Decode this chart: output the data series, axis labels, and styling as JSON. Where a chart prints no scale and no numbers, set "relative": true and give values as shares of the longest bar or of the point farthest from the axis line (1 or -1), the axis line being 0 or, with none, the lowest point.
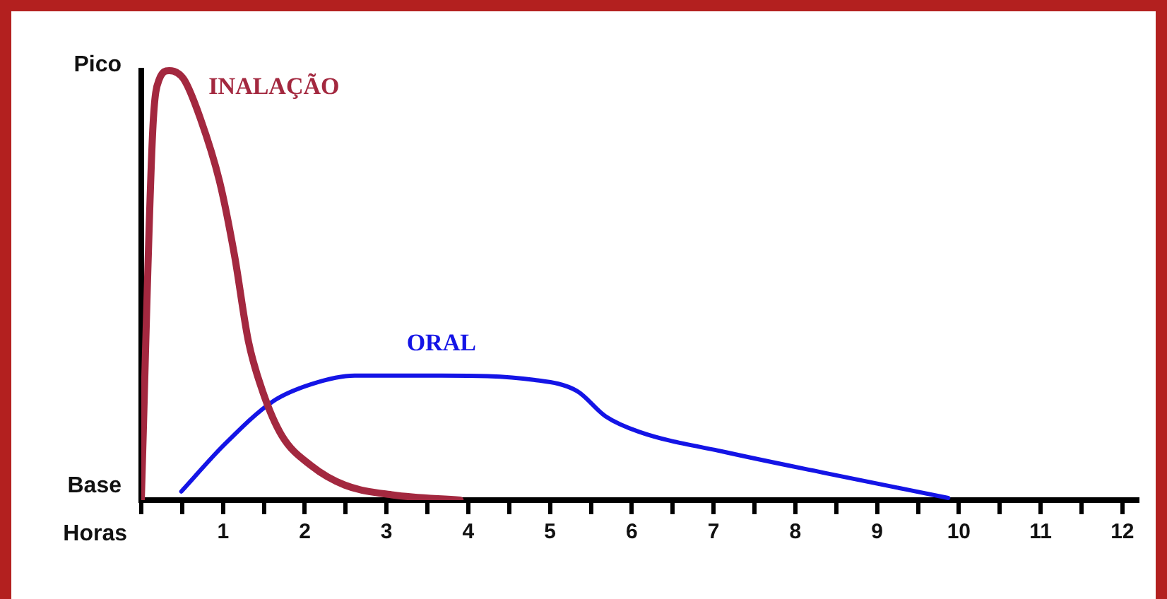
{
  "chart_data": {
    "type": "line",
    "xlabel": "Horas",
    "relative": true,
    "annotations": [
      "Pico",
      "Base"
    ],
    "series": [
      {
        "name": "INALAÇÃO",
        "color": "#a3283f",
        "x": [
          0,
          0.14,
          0.22,
          0.34,
          0.52,
          0.72,
          0.96,
          1.14,
          1.31,
          1.49,
          1.72,
          2.08,
          2.49,
          3.08,
          3.9
        ],
        "values": [
          0,
          0.86,
          0.98,
          1,
          0.98,
          0.89,
          0.74,
          0.57,
          0.37,
          0.25,
          0.15,
          0.08,
          0.035,
          0.012,
          0
        ]
      },
      {
        "name": "ORAL",
        "color": "#1414e6",
        "x": [
          0.49,
          1.02,
          1.61,
          2.08,
          2.61,
          3.67,
          4.8,
          5.33,
          5.68,
          6.09,
          7.16,
          8.34,
          9.87
        ],
        "values": [
          0.02,
          0.13,
          0.23,
          0.27,
          0.29,
          0.29,
          0.28,
          0.254,
          0.195,
          0.159,
          0.111,
          0.064,
          0.005
        ]
      }
    ],
    "xlim": [
      0,
      12.2
    ],
    "xticks": [
      {
        "value": 0,
        "label": null
      },
      {
        "value": 0.5,
        "label": null
      },
      1,
      {
        "value": 1.5,
        "label": null
      },
      2,
      {
        "value": 2.5,
        "label": null
      },
      3,
      {
        "value": 3.5,
        "label": null
      },
      4,
      {
        "value": 4.5,
        "label": null
      },
      5,
      {
        "value": 5.5,
        "label": null
      },
      6,
      {
        "value": 6.5,
        "label": null
      },
      7,
      {
        "value": 7.5,
        "label": null
      },
      8,
      {
        "value": 8.5,
        "label": null
      },
      9,
      {
        "value": 9.5,
        "label": null
      },
      10,
      {
        "value": 10.5,
        "label": null
      },
      11,
      {
        "value": 11.5,
        "label": null
      },
      12
    ],
    "grid": false,
    "legend": false,
    "marker": "none",
    "line_style": "solid"
  }
}
